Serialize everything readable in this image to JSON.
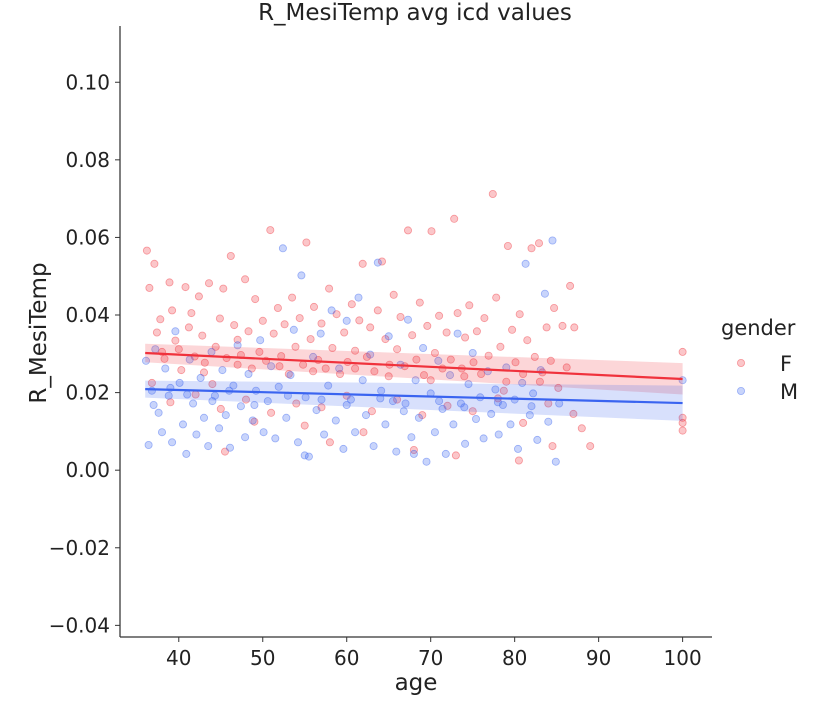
{
  "chart_data": {
    "type": "scatter",
    "title": "R_MesiTemp avg icd values",
    "xlabel": "age",
    "ylabel": "R_MesiTemp",
    "xlim": [
      33,
      103.5
    ],
    "ylim": [
      -0.043,
      0.1145
    ],
    "xticks": [
      40,
      50,
      60,
      70,
      80,
      90,
      100
    ],
    "yticks": [
      -0.04,
      -0.02,
      0.0,
      0.02,
      0.04,
      0.06,
      0.08,
      0.1
    ],
    "ytick_labels": [
      "−0.04",
      "−0.02",
      "0.00",
      "0.02",
      "0.04",
      "0.06",
      "0.08",
      "0.10"
    ],
    "grid": false,
    "legend": {
      "title": "gender",
      "position": "right"
    },
    "series": [
      {
        "name": "F",
        "color": "#f0323c",
        "fit": {
          "x": [
            36,
            100
          ],
          "y": [
            0.0302,
            0.0235
          ],
          "ci_start": [
            0.0278,
            0.0326
          ],
          "ci_end": [
            0.0195,
            0.0276
          ]
        },
        "points": [
          [
            36.2,
            0.0566
          ],
          [
            36.5,
            0.047
          ],
          [
            37.1,
            0.0532
          ],
          [
            37.4,
            0.0355
          ],
          [
            37.8,
            0.0389
          ],
          [
            38.3,
            0.0287
          ],
          [
            38.9,
            0.0484
          ],
          [
            39.2,
            0.0412
          ],
          [
            39.6,
            0.0334
          ],
          [
            40.0,
            0.0312
          ],
          [
            40.3,
            0.0258
          ],
          [
            40.8,
            0.0472
          ],
          [
            41.2,
            0.0368
          ],
          [
            41.5,
            0.0405
          ],
          [
            41.9,
            0.0293
          ],
          [
            42.4,
            0.0448
          ],
          [
            42.8,
            0.0347
          ],
          [
            43.1,
            0.0277
          ],
          [
            43.6,
            0.0482
          ],
          [
            44.0,
            0.0222
          ],
          [
            44.4,
            0.0318
          ],
          [
            44.9,
            0.0391
          ],
          [
            45.3,
            0.0468
          ],
          [
            45.7,
            0.0289
          ],
          [
            46.2,
            0.0552
          ],
          [
            46.6,
            0.0374
          ],
          [
            47.0,
            0.0336
          ],
          [
            47.4,
            0.0297
          ],
          [
            47.9,
            0.0492
          ],
          [
            48.3,
            0.0358
          ],
          [
            48.7,
            0.0262
          ],
          [
            49.1,
            0.0441
          ],
          [
            49.6,
            0.0305
          ],
          [
            50.0,
            0.0385
          ],
          [
            50.4,
            0.0282
          ],
          [
            50.9,
            0.0619
          ],
          [
            51.3,
            0.0352
          ],
          [
            51.8,
            0.0418
          ],
          [
            52.2,
            0.0294
          ],
          [
            52.6,
            0.0376
          ],
          [
            53.1,
            0.0248
          ],
          [
            53.5,
            0.0445
          ],
          [
            53.9,
            0.0318
          ],
          [
            54.4,
            0.0392
          ],
          [
            54.8,
            0.0272
          ],
          [
            55.2,
            0.0587
          ],
          [
            55.7,
            0.0338
          ],
          [
            56.1,
            0.0421
          ],
          [
            56.6,
            0.0284
          ],
          [
            57.0,
            0.0378
          ],
          [
            57.5,
            0.0262
          ],
          [
            57.9,
            0.0468
          ],
          [
            58.3,
            0.0315
          ],
          [
            58.8,
            0.0402
          ],
          [
            59.2,
            0.0248
          ],
          [
            59.7,
            0.0355
          ],
          [
            60.1,
            0.0279
          ],
          [
            60.6,
            0.0428
          ],
          [
            61.0,
            0.0308
          ],
          [
            61.5,
            0.0386
          ],
          [
            61.9,
            0.0532
          ],
          [
            62.4,
            0.0292
          ],
          [
            62.8,
            0.0368
          ],
          [
            63.3,
            0.0255
          ],
          [
            63.7,
            0.0412
          ],
          [
            64.2,
            0.0538
          ],
          [
            64.6,
            0.0338
          ],
          [
            65.1,
            0.0272
          ],
          [
            65.6,
            0.0452
          ],
          [
            66.0,
            0.0312
          ],
          [
            66.4,
            0.0395
          ],
          [
            66.9,
            0.0268
          ],
          [
            67.3,
            0.0618
          ],
          [
            67.8,
            0.0348
          ],
          [
            68.3,
            0.0285
          ],
          [
            68.7,
            0.0432
          ],
          [
            69.2,
            0.0245
          ],
          [
            69.6,
            0.0372
          ],
          [
            70.1,
            0.0616
          ],
          [
            70.5,
            0.0302
          ],
          [
            71.0,
            0.0398
          ],
          [
            71.4,
            0.0262
          ],
          [
            71.9,
            0.0355
          ],
          [
            72.4,
            0.0285
          ],
          [
            72.8,
            0.0648
          ],
          [
            73.2,
            0.0405
          ],
          [
            73.7,
            0.0262
          ],
          [
            74.1,
            0.0342
          ],
          [
            74.6,
            0.0425
          ],
          [
            75.1,
            0.0278
          ],
          [
            75.5,
            0.0358
          ],
          [
            76.0,
            0.0248
          ],
          [
            76.4,
            0.0392
          ],
          [
            76.9,
            0.0295
          ],
          [
            77.4,
            0.0712
          ],
          [
            77.8,
            0.0445
          ],
          [
            78.3,
            0.0318
          ],
          [
            78.7,
            0.0205
          ],
          [
            79.2,
            0.0578
          ],
          [
            79.7,
            0.0362
          ],
          [
            80.1,
            0.0278
          ],
          [
            80.6,
            0.0402
          ],
          [
            81.0,
            0.0248
          ],
          [
            81.5,
            0.0335
          ],
          [
            82.0,
            0.0572
          ],
          [
            82.4,
            0.0292
          ],
          [
            82.9,
            0.0585
          ],
          [
            83.3,
            0.0252
          ],
          [
            83.8,
            0.0368
          ],
          [
            84.3,
            0.0282
          ],
          [
            84.7,
            0.0418
          ],
          [
            85.2,
            0.0212
          ],
          [
            85.7,
            0.0372
          ],
          [
            86.2,
            0.0265
          ],
          [
            86.6,
            0.0475
          ],
          [
            87.1,
            0.0368
          ],
          [
            88.0,
            0.0108
          ],
          [
            89.0,
            0.0062
          ],
          [
            100.0,
            0.0305
          ],
          [
            100.0,
            0.0135
          ],
          [
            100.0,
            0.0122
          ],
          [
            100.0,
            0.0102
          ],
          [
            36.8,
            0.0225
          ],
          [
            39.0,
            0.0175
          ],
          [
            42.0,
            0.0195
          ],
          [
            45.0,
            0.0158
          ],
          [
            48.0,
            0.0182
          ],
          [
            51.0,
            0.0148
          ],
          [
            54.0,
            0.0172
          ],
          [
            57.0,
            0.0162
          ],
          [
            60.0,
            0.0192
          ],
          [
            63.0,
            0.0152
          ],
          [
            66.0,
            0.0182
          ],
          [
            69.0,
            0.0142
          ],
          [
            72.0,
            0.0166
          ],
          [
            75.0,
            0.0152
          ],
          [
            78.0,
            0.0185
          ],
          [
            81.0,
            0.0122
          ],
          [
            84.0,
            0.0172
          ],
          [
            87.0,
            0.0145
          ],
          [
            38.0,
            0.0305
          ],
          [
            43.0,
            0.0252
          ],
          [
            47.0,
            0.0272
          ],
          [
            52.0,
            0.0268
          ],
          [
            56.0,
            0.0255
          ],
          [
            61.0,
            0.0262
          ],
          [
            65.0,
            0.0242
          ],
          [
            70.0,
            0.0232
          ],
          [
            74.0,
            0.0242
          ],
          [
            79.0,
            0.0228
          ],
          [
            83.0,
            0.0228
          ],
          [
            45.5,
            0.0048
          ],
          [
            58.0,
            0.0072
          ],
          [
            68.0,
            0.0052
          ],
          [
            73.0,
            0.0038
          ],
          [
            80.5,
            0.0025
          ],
          [
            84.5,
            0.0062
          ],
          [
            62.0,
            0.0098
          ],
          [
            55.0,
            0.0115
          ],
          [
            49.0,
            0.0125
          ]
        ]
      },
      {
        "name": "M",
        "color": "#3a64f0",
        "fit": {
          "x": [
            36,
            100
          ],
          "y": [
            0.0209,
            0.0173
          ],
          "ci_start": [
            0.0187,
            0.0231
          ],
          "ci_end": [
            0.0127,
            0.0218
          ]
        },
        "points": [
          [
            36.1,
            0.0282
          ],
          [
            36.4,
            0.0065
          ],
          [
            36.8,
            0.0205
          ],
          [
            37.2,
            0.0312
          ],
          [
            37.6,
            0.0148
          ],
          [
            38.0,
            0.0098
          ],
          [
            38.4,
            0.0262
          ],
          [
            38.8,
            0.0192
          ],
          [
            39.2,
            0.0072
          ],
          [
            39.6,
            0.0358
          ],
          [
            40.1,
            0.0225
          ],
          [
            40.5,
            0.0118
          ],
          [
            40.9,
            0.0042
          ],
          [
            41.3,
            0.0285
          ],
          [
            41.7,
            0.0172
          ],
          [
            42.1,
            0.0092
          ],
          [
            42.6,
            0.0238
          ],
          [
            43.0,
            0.0135
          ],
          [
            43.5,
            0.0062
          ],
          [
            43.9,
            0.0305
          ],
          [
            44.3,
            0.0192
          ],
          [
            44.8,
            0.0108
          ],
          [
            45.2,
            0.0258
          ],
          [
            45.6,
            0.0142
          ],
          [
            46.1,
            0.0058
          ],
          [
            46.5,
            0.0218
          ],
          [
            47.0,
            0.0322
          ],
          [
            47.4,
            0.0165
          ],
          [
            47.9,
            0.0085
          ],
          [
            48.3,
            0.0248
          ],
          [
            48.8,
            0.0128
          ],
          [
            49.2,
            0.0205
          ],
          [
            49.7,
            0.0335
          ],
          [
            50.1,
            0.0098
          ],
          [
            50.6,
            0.0178
          ],
          [
            51.0,
            0.0268
          ],
          [
            51.5,
            0.0082
          ],
          [
            51.9,
            0.0215
          ],
          [
            52.4,
            0.0572
          ],
          [
            52.8,
            0.0135
          ],
          [
            53.3,
            0.0245
          ],
          [
            53.7,
            0.0362
          ],
          [
            54.2,
            0.0072
          ],
          [
            54.6,
            0.0502
          ],
          [
            55.1,
            0.0188
          ],
          [
            55.5,
            0.0035
          ],
          [
            56.0,
            0.0292
          ],
          [
            56.4,
            0.0155
          ],
          [
            56.9,
            0.0352
          ],
          [
            57.3,
            0.0092
          ],
          [
            57.8,
            0.0218
          ],
          [
            58.2,
            0.0412
          ],
          [
            58.7,
            0.0128
          ],
          [
            59.1,
            0.0262
          ],
          [
            59.6,
            0.0055
          ],
          [
            60.0,
            0.0385
          ],
          [
            60.5,
            0.0182
          ],
          [
            61.0,
            0.0098
          ],
          [
            61.4,
            0.0445
          ],
          [
            61.9,
            0.0232
          ],
          [
            62.3,
            0.0142
          ],
          [
            62.8,
            0.0298
          ],
          [
            63.2,
            0.0062
          ],
          [
            63.7,
            0.0535
          ],
          [
            64.1,
            0.0205
          ],
          [
            64.6,
            0.0118
          ],
          [
            65.0,
            0.0345
          ],
          [
            65.5,
            0.0178
          ],
          [
            65.9,
            0.0048
          ],
          [
            66.4,
            0.0272
          ],
          [
            66.8,
            0.0152
          ],
          [
            67.3,
            0.0388
          ],
          [
            67.7,
            0.0085
          ],
          [
            68.2,
            0.0232
          ],
          [
            68.6,
            0.0135
          ],
          [
            69.1,
            0.0315
          ],
          [
            69.5,
            0.0022
          ],
          [
            70.0,
            0.0198
          ],
          [
            70.5,
            0.0098
          ],
          [
            70.9,
            0.0282
          ],
          [
            71.4,
            0.0158
          ],
          [
            71.8,
            0.0042
          ],
          [
            72.3,
            0.0245
          ],
          [
            72.7,
            0.0118
          ],
          [
            73.2,
            0.0352
          ],
          [
            73.6,
            0.0172
          ],
          [
            74.1,
            0.0068
          ],
          [
            74.5,
            0.0222
          ],
          [
            75.0,
            0.0302
          ],
          [
            75.4,
            0.0132
          ],
          [
            75.9,
            0.0188
          ],
          [
            76.3,
            0.0082
          ],
          [
            76.8,
            0.0255
          ],
          [
            77.2,
            0.0145
          ],
          [
            77.7,
            0.0208
          ],
          [
            78.1,
            0.0092
          ],
          [
            78.6,
            0.0168
          ],
          [
            79.0,
            0.0265
          ],
          [
            79.5,
            0.0118
          ],
          [
            80.0,
            0.0182
          ],
          [
            80.4,
            0.0055
          ],
          [
            80.9,
            0.0225
          ],
          [
            81.3,
            0.0532
          ],
          [
            81.8,
            0.0142
          ],
          [
            82.2,
            0.0198
          ],
          [
            82.7,
            0.0078
          ],
          [
            83.1,
            0.0258
          ],
          [
            83.6,
            0.0455
          ],
          [
            84.0,
            0.0125
          ],
          [
            84.5,
            0.0592
          ],
          [
            84.9,
            0.0022
          ],
          [
            85.3,
            0.0172
          ],
          [
            100.0,
            0.0232
          ],
          [
            37.0,
            0.0168
          ],
          [
            39.0,
            0.0212
          ],
          [
            41.0,
            0.0195
          ],
          [
            44.0,
            0.0178
          ],
          [
            46.0,
            0.0205
          ],
          [
            49.0,
            0.0168
          ],
          [
            53.0,
            0.0192
          ],
          [
            57.0,
            0.0182
          ],
          [
            60.0,
            0.0168
          ],
          [
            64.0,
            0.0185
          ],
          [
            67.0,
            0.0172
          ],
          [
            71.0,
            0.0178
          ],
          [
            74.0,
            0.0162
          ],
          [
            78.0,
            0.0175
          ],
          [
            82.0,
            0.0165
          ],
          [
            55.0,
            0.0038
          ],
          [
            68.0,
            0.0042
          ]
        ]
      }
    ]
  }
}
